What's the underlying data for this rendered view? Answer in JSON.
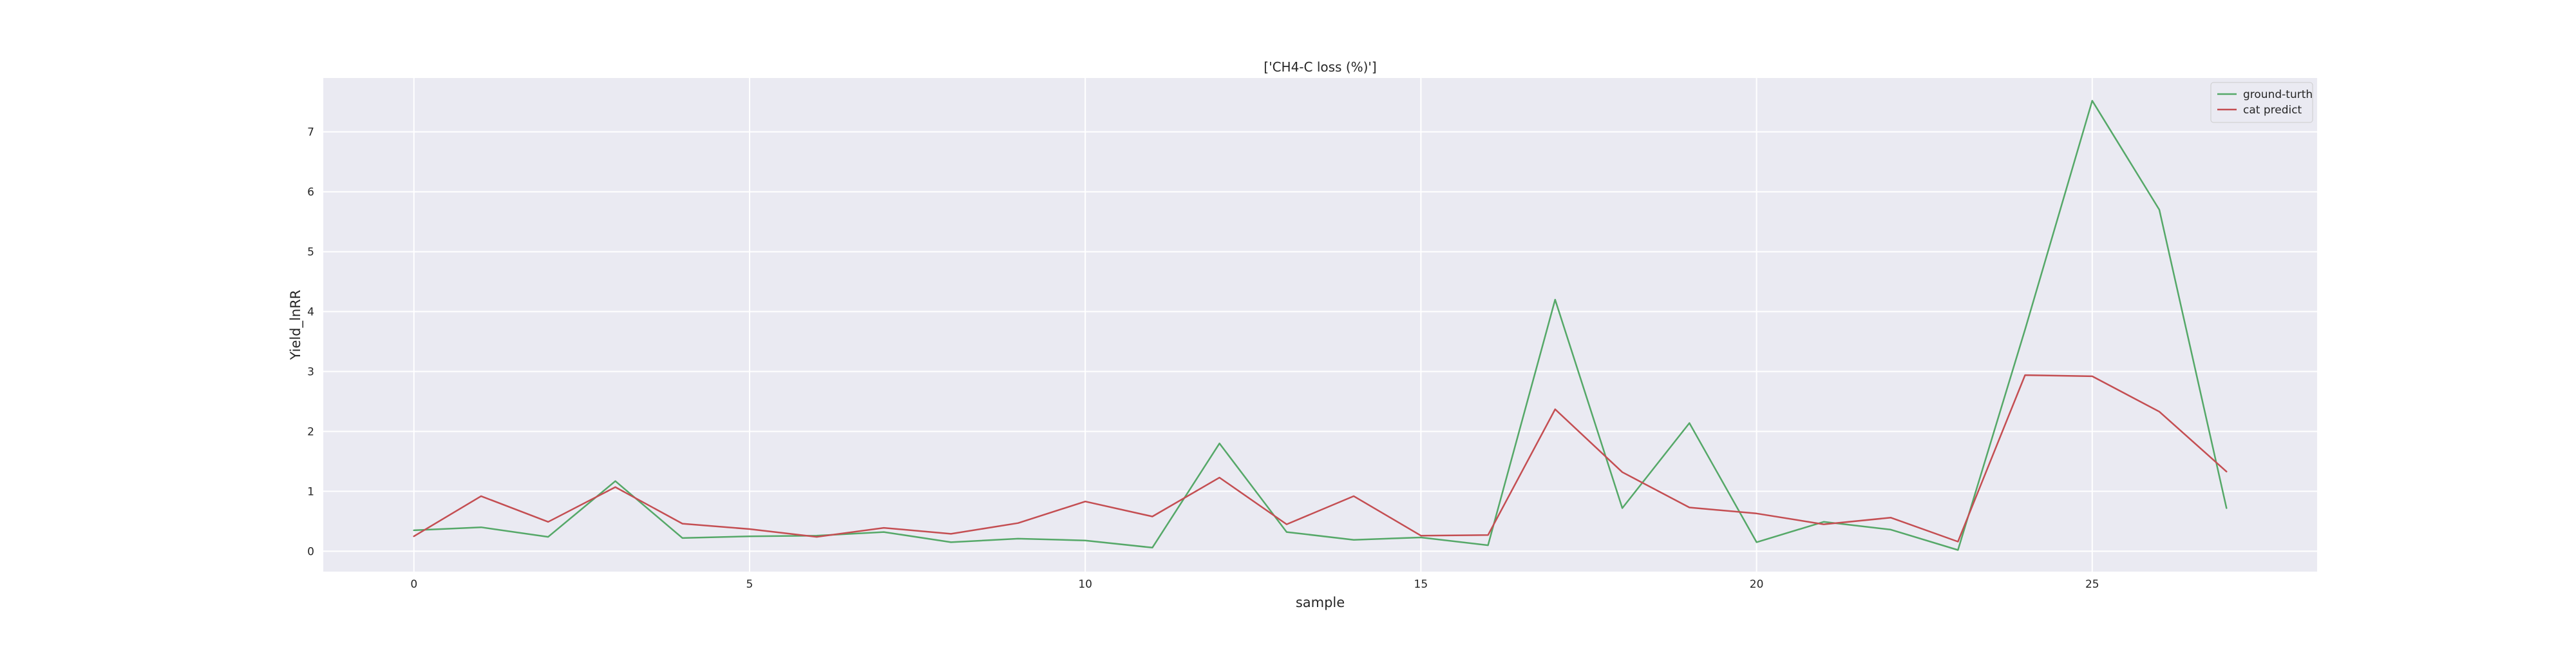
{
  "chart_data": {
    "type": "line",
    "title": "['CH4-C loss (%)']",
    "xlabel": "sample",
    "ylabel": "Yield_lnRR",
    "xlim": [
      -1.35,
      28.35
    ],
    "ylim": [
      -0.34,
      7.9
    ],
    "xticks": [
      0,
      5,
      10,
      15,
      20,
      25
    ],
    "yticks": [
      0,
      1,
      2,
      3,
      4,
      5,
      6,
      7
    ],
    "grid": true,
    "legend_position": "top-right",
    "x": [
      0,
      1,
      2,
      3,
      4,
      5,
      6,
      7,
      8,
      9,
      10,
      11,
      12,
      13,
      14,
      15,
      16,
      17,
      18,
      19,
      20,
      21,
      22,
      23,
      24,
      25,
      26,
      27
    ],
    "series": [
      {
        "name": "ground-turth",
        "color": "#55a868",
        "values": [
          0.35,
          0.4,
          0.24,
          1.17,
          0.22,
          0.25,
          0.26,
          0.32,
          0.15,
          0.21,
          0.18,
          0.06,
          1.8,
          0.32,
          0.19,
          0.23,
          0.1,
          4.2,
          0.72,
          2.14,
          0.15,
          0.49,
          0.36,
          0.02,
          3.7,
          7.52,
          5.7,
          0.72
        ]
      },
      {
        "name": "cat predict",
        "color": "#c44e52",
        "values": [
          0.25,
          0.92,
          0.49,
          1.07,
          0.46,
          0.37,
          0.24,
          0.39,
          0.29,
          0.47,
          0.83,
          0.58,
          1.23,
          0.45,
          0.92,
          0.26,
          0.27,
          2.37,
          1.32,
          0.73,
          0.63,
          0.45,
          0.56,
          0.16,
          2.94,
          2.92,
          2.33,
          1.33
        ]
      }
    ]
  }
}
